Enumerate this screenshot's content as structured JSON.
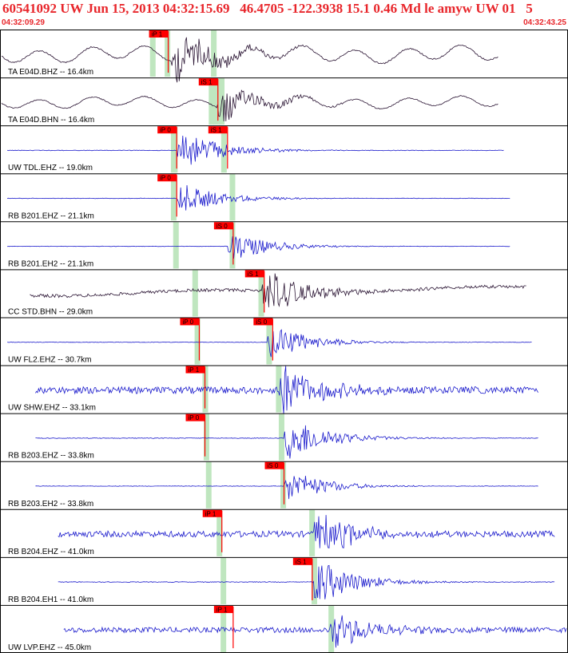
{
  "header": {
    "title": "60541092 UW Jun 15, 2013 04:32:15.69   46.4705 -122.3938 15.1 0.46 Md le amyw UW 01   5",
    "start_time": "04:32:09.29",
    "end_time": "04:32:43.25"
  },
  "colors": {
    "header_text": "#e8262b",
    "trace_blue": "#1a1acc",
    "trace_dark": "#2a1433",
    "pick_box": "#ff0000",
    "pick_window": "#bfe6bf",
    "frame": "#000000"
  },
  "chart_data": {
    "type": "line",
    "title": "60541092 UW Jun 15, 2013 04:32:15.69   46.4705 -122.3938 15.1 0.46 Md le amyw UW 01   5",
    "x_range": [
      "04:32:09.29",
      "04:32:43.25"
    ],
    "grid": false,
    "traces": [
      {
        "label": "TA E04D.BHZ -- 16.4km",
        "color": "dark",
        "wave": "long",
        "start": 0.0,
        "end": 0.88,
        "onset": 0.3,
        "amp": 0.85,
        "picks": [
          {
            "text": "iP 1",
            "at": 0.295
          },
          {
            "text": "iS 1",
            "at": 0.383,
            "hidden": true
          }
        ]
      },
      {
        "label": "TA E04D.BHN -- 16.4km",
        "color": "dark",
        "wave": "long",
        "start": 0.0,
        "end": 0.88,
        "onset": 0.38,
        "amp": 0.6,
        "picks": [
          {
            "text": "iS 1",
            "at": 0.383
          }
        ]
      },
      {
        "label": "UW TDL.EHZ -- 19.0km",
        "color": "blue",
        "wave": "flat",
        "start": 0.01,
        "end": 0.89,
        "onset": 0.31,
        "amp": 0.7,
        "picks": [
          {
            "text": "iP 0",
            "at": 0.31
          },
          {
            "text": "iS 1",
            "at": 0.4
          }
        ]
      },
      {
        "label": "RB B201.EHZ -- 21.1km",
        "color": "blue",
        "wave": "flat",
        "start": 0.01,
        "end": 0.9,
        "onset": 0.31,
        "amp": 0.55,
        "picks": [
          {
            "text": "iP 0",
            "at": 0.31
          }
        ]
      },
      {
        "label": "RB B201.EH2 -- 21.1km",
        "color": "blue",
        "wave": "flat",
        "start": 0.01,
        "end": 0.9,
        "onset": 0.4,
        "amp": 0.5,
        "picks": [
          {
            "text": "iS 0",
            "at": 0.41
          }
        ]
      },
      {
        "label": "CC STD.BHN -- 29.0km",
        "color": "dark",
        "wave": "drift",
        "start": 0.05,
        "end": 0.93,
        "onset": 0.46,
        "amp": 0.8,
        "picks": [
          {
            "text": "iS 1",
            "at": 0.465
          }
        ]
      },
      {
        "label": "UW FL2.EHZ -- 30.7km",
        "color": "blue",
        "wave": "flat",
        "start": 0.01,
        "end": 0.94,
        "onset": 0.47,
        "amp": 0.6,
        "picks": [
          {
            "text": "iP 0",
            "at": 0.35
          },
          {
            "text": "iS 0",
            "at": 0.48
          }
        ]
      },
      {
        "label": "UW SHW.EHZ -- 33.1km",
        "color": "blue",
        "wave": "noisy",
        "start": 0.06,
        "end": 0.95,
        "onset": 0.49,
        "amp": 0.9,
        "picks": [
          {
            "text": "iP 1",
            "at": 0.36
          }
        ]
      },
      {
        "label": "RB B203.EHZ -- 33.8km",
        "color": "blue",
        "wave": "flat",
        "start": 0.06,
        "end": 0.95,
        "onset": 0.5,
        "amp": 0.8,
        "picks": [
          {
            "text": "iP 0",
            "at": 0.36
          }
        ]
      },
      {
        "label": "RB B203.EH2 -- 33.8km",
        "color": "blue",
        "wave": "flat",
        "start": 0.06,
        "end": 0.95,
        "onset": 0.5,
        "amp": 0.55,
        "picks": [
          {
            "text": "iS 0",
            "at": 0.5
          }
        ]
      },
      {
        "label": "RB B204.EHZ -- 41.0km",
        "color": "blue",
        "wave": "noisy",
        "start": 0.1,
        "end": 0.98,
        "onset": 0.55,
        "amp": 0.8,
        "picks": [
          {
            "text": "iP 1",
            "at": 0.39
          }
        ]
      },
      {
        "label": "RB B204.EH1 -- 41.0km",
        "color": "blue",
        "wave": "flat",
        "start": 0.1,
        "end": 0.98,
        "onset": 0.55,
        "amp": 0.8,
        "picks": [
          {
            "text": "iS 1",
            "at": 0.55
          }
        ]
      },
      {
        "label": "UW LVP.EHZ -- 45.0km",
        "color": "blue",
        "wave": "noisy",
        "start": 0.11,
        "end": 1.0,
        "onset": 0.58,
        "amp": 0.7,
        "picks": [
          {
            "text": "iP 1",
            "at": 0.41
          }
        ]
      }
    ],
    "green_windows": [
      [
        0.293,
        0.267,
        0.375
      ],
      [
        0.379,
        0.371,
        0.389
      ],
      [
        0.306,
        0.304,
        0.393
      ],
      [
        0.304,
        0.408
      ],
      [
        0.308,
        0.408
      ],
      [
        0.342,
        0.459
      ],
      [
        0.346,
        0.473
      ],
      [
        0.36,
        0.49
      ],
      [
        0.362,
        0.495
      ],
      [
        0.366,
        0.498
      ],
      [
        0.385,
        0.549
      ],
      [
        0.392,
        0.553
      ],
      [
        0.392,
        0.583
      ]
    ]
  }
}
